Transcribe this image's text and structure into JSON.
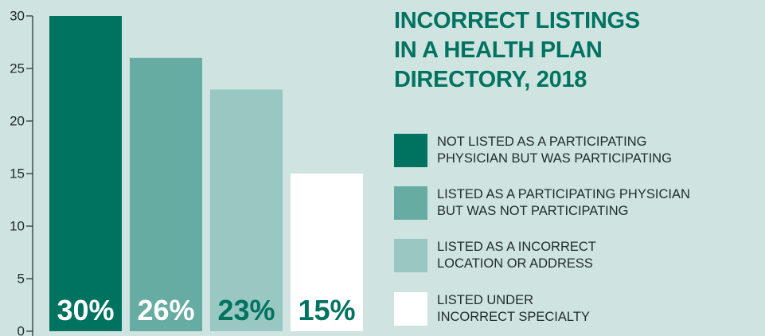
{
  "chart_data": {
    "type": "bar",
    "title": "INCORRECT LISTINGS\nIN A HEALTH PLAN\nDIRECTORY, 2018",
    "categories": [
      "NOT LISTED AS A PARTICIPATING\nPHYSICIAN BUT WAS PARTICIPATING",
      "LISTED AS A PARTICIPATING PHYSICIAN\nBUT WAS NOT PARTICIPATING",
      "LISTED AS A INCORRECT\nLOCATION OR ADDRESS",
      "LISTED UNDER\nINCORRECT SPECIALTY"
    ],
    "values": [
      30,
      26,
      23,
      15
    ],
    "data_labels": [
      "30%",
      "26%",
      "23%",
      "15%"
    ],
    "ylim": [
      0,
      30
    ],
    "yticks": [
      0,
      5,
      10,
      15,
      20,
      25,
      30
    ],
    "grid": false,
    "legend_position": "right",
    "colors": [
      "#007360",
      "#66aca2",
      "#99c7c2",
      "#ffffff"
    ],
    "label_colors": [
      "#ffffff",
      "#ffffff",
      "#007360",
      "#007360"
    ]
  }
}
